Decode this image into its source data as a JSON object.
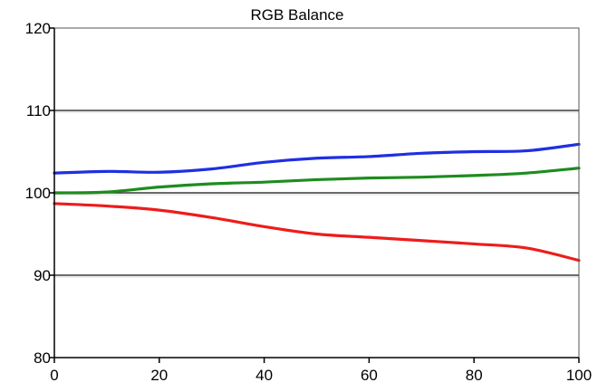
{
  "chart_data": {
    "type": "line",
    "title": "RGB Balance",
    "xlabel": "",
    "ylabel": "",
    "xlim": [
      0,
      100
    ],
    "ylim": [
      80,
      120
    ],
    "x_ticks": [
      0,
      20,
      40,
      60,
      80,
      100
    ],
    "y_ticks": [
      80,
      90,
      100,
      110,
      120
    ],
    "grid": "horizontal",
    "x": [
      0,
      10,
      20,
      30,
      40,
      50,
      60,
      70,
      80,
      90,
      100
    ],
    "series": [
      {
        "color": "#1f2fe0",
        "values": [
          102.4,
          102.6,
          102.5,
          102.9,
          103.7,
          104.2,
          104.4,
          104.8,
          105.0,
          105.1,
          105.9
        ]
      },
      {
        "color": "#1e8c1e",
        "values": [
          100.0,
          100.1,
          100.7,
          101.1,
          101.3,
          101.6,
          101.8,
          101.9,
          102.1,
          102.4,
          103.0
        ]
      },
      {
        "color": "#ee1c1c",
        "values": [
          98.7,
          98.4,
          97.9,
          97.0,
          95.9,
          95.0,
          94.6,
          94.2,
          93.8,
          93.3,
          91.8
        ]
      }
    ]
  }
}
